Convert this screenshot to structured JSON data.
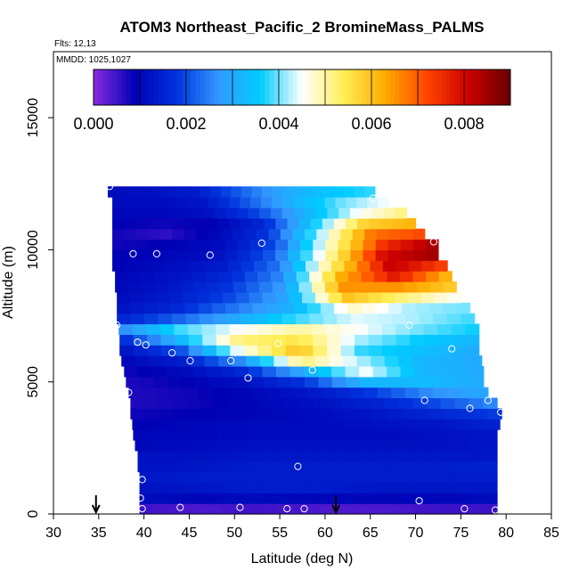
{
  "chart_data": {
    "type": "heatmap",
    "title": "ATOM3 Northeast_Pacific_2 BromineMass_PALMS",
    "flights_label": "Flts: 12,13",
    "date_label": "MMDD: 1025,1027",
    "xlabel": "Latitude (deg N)",
    "ylabel": "Altitude (m)",
    "xlim": [
      30,
      85
    ],
    "ylim": [
      0,
      17500
    ],
    "x_ticks": [
      "30",
      "35",
      "40",
      "45",
      "50",
      "55",
      "60",
      "65",
      "70",
      "75",
      "80",
      "85"
    ],
    "y_ticks": [
      "0",
      "5000",
      "10000",
      "15000"
    ],
    "colorbar": {
      "range": [
        0,
        0.009
      ],
      "tick_labels": [
        "0.000",
        "0.002",
        "0.004",
        "0.006",
        "0.008"
      ],
      "colors": [
        "#8a2be2",
        "#0000b4",
        "#0033dd",
        "#3399ff",
        "#00ccff",
        "#ffffff",
        "#ffee55",
        "#ffaa00",
        "#ff4400",
        "#cc0000",
        "#660000"
      ]
    },
    "layers": [
      {
        "alt": 200,
        "lat_start": 39.5,
        "lat_end": 79,
        "values": [
          0.0005,
          0.0004,
          0.0005,
          0.0004,
          0.0004,
          0.0005,
          0.0005
        ]
      },
      {
        "alt": 600,
        "lat_start": 39.5,
        "lat_end": 79,
        "values": [
          0.0011,
          0.001,
          0.0011,
          0.001,
          0.001,
          0.001,
          0.0011
        ]
      },
      {
        "alt": 1000,
        "lat_start": 39.5,
        "lat_end": 79,
        "values": [
          0.0012,
          0.0013,
          0.0014,
          0.0014,
          0.0013,
          0.0013,
          0.0013
        ]
      },
      {
        "alt": 1400,
        "lat_start": 39.5,
        "lat_end": 79,
        "values": [
          0.0013,
          0.0014,
          0.0014,
          0.0014,
          0.0014,
          0.0014,
          0.0014
        ]
      },
      {
        "alt": 1800,
        "lat_start": 39.3,
        "lat_end": 79,
        "values": [
          0.0012,
          0.0013,
          0.0014,
          0.0014,
          0.0014,
          0.0014,
          0.0015
        ]
      },
      {
        "alt": 2200,
        "lat_start": 39.3,
        "lat_end": 79,
        "values": [
          0.0012,
          0.0012,
          0.0013,
          0.0013,
          0.0013,
          0.0013,
          0.0013
        ]
      },
      {
        "alt": 2600,
        "lat_start": 39,
        "lat_end": 79,
        "values": [
          0.001,
          0.0011,
          0.0012,
          0.0012,
          0.0012,
          0.0012,
          0.0013
        ]
      },
      {
        "alt": 3000,
        "lat_start": 38.8,
        "lat_end": 79,
        "values": [
          0.001,
          0.001,
          0.0011,
          0.0011,
          0.0011,
          0.0012,
          0.0013
        ]
      },
      {
        "alt": 3400,
        "lat_start": 38.7,
        "lat_end": 79.3,
        "values": [
          0.0009,
          0.001,
          0.0011,
          0.0011,
          0.0012,
          0.0013,
          0.0015
        ]
      },
      {
        "alt": 3800,
        "lat_start": 38.5,
        "lat_end": 79.5,
        "values": [
          0.0008,
          0.0009,
          0.001,
          0.0011,
          0.0013,
          0.0016,
          0.0019
        ]
      },
      {
        "alt": 4200,
        "lat_start": 38.5,
        "lat_end": 79,
        "values": [
          0.0007,
          0.0008,
          0.001,
          0.0012,
          0.0015,
          0.002,
          0.0026
        ]
      },
      {
        "alt": 4600,
        "lat_start": 38.3,
        "lat_end": 78,
        "values": [
          0.0007,
          0.0008,
          0.001,
          0.0013,
          0.0018,
          0.0026,
          0.003
        ]
      },
      {
        "alt": 5000,
        "lat_start": 38,
        "lat_end": 77.5,
        "values": [
          0.0007,
          0.0009,
          0.0012,
          0.0018,
          0.0032,
          0.0033,
          0.003
        ]
      },
      {
        "alt": 5400,
        "lat_start": 37.8,
        "lat_end": 77.5,
        "values": [
          0.0008,
          0.0011,
          0.0016,
          0.003,
          0.0045,
          0.0032,
          0.003
        ]
      },
      {
        "alt": 5800,
        "lat_start": 37.5,
        "lat_end": 77.3,
        "values": [
          0.001,
          0.0014,
          0.0026,
          0.0052,
          0.0042,
          0.0032,
          0.003
        ]
      },
      {
        "alt": 6200,
        "lat_start": 37.3,
        "lat_end": 77,
        "values": [
          0.0012,
          0.002,
          0.0045,
          0.006,
          0.0038,
          0.0034,
          0.003
        ]
      },
      {
        "alt": 6600,
        "lat_start": 37.3,
        "lat_end": 77,
        "values": [
          0.0016,
          0.0032,
          0.0052,
          0.0055,
          0.0042,
          0.0036,
          0.0032
        ]
      },
      {
        "alt": 7000,
        "lat_start": 37.2,
        "lat_end": 77,
        "values": [
          0.0025,
          0.0038,
          0.0045,
          0.005,
          0.0045,
          0.004,
          0.0036
        ]
      },
      {
        "alt": 7400,
        "lat_start": 37,
        "lat_end": 76.5,
        "values": [
          0.0015,
          0.0022,
          0.003,
          0.0038,
          0.0044,
          0.0042,
          0.0038
        ]
      },
      {
        "alt": 7800,
        "lat_start": 37,
        "lat_end": 76,
        "values": [
          0.0012,
          0.0016,
          0.0024,
          0.0032,
          0.0048,
          0.0042,
          0.004
        ]
      },
      {
        "alt": 8200,
        "lat_start": 37,
        "lat_end": 75,
        "values": [
          0.0011,
          0.0014,
          0.002,
          0.003,
          0.006,
          0.0052,
          0.0045
        ]
      },
      {
        "alt": 8600,
        "lat_start": 36.8,
        "lat_end": 74.5,
        "values": [
          0.001,
          0.0013,
          0.0018,
          0.0028,
          0.0065,
          0.0065,
          0.0058
        ]
      },
      {
        "alt": 9000,
        "lat_start": 36.8,
        "lat_end": 74,
        "values": [
          0.001,
          0.0012,
          0.0016,
          0.0026,
          0.0062,
          0.0078,
          0.006
        ]
      },
      {
        "alt": 9400,
        "lat_start": 36.5,
        "lat_end": 73.5,
        "values": [
          0.0009,
          0.0011,
          0.0014,
          0.0024,
          0.0055,
          0.0082,
          0.0072
        ]
      },
      {
        "alt": 9800,
        "lat_start": 36.5,
        "lat_end": 72.5,
        "values": [
          0.0009,
          0.001,
          0.0012,
          0.0022,
          0.005,
          0.008,
          0.0085
        ]
      },
      {
        "alt": 10200,
        "lat_start": 36.5,
        "lat_end": 72.5,
        "values": [
          0.0008,
          0.0009,
          0.0011,
          0.002,
          0.0048,
          0.0075,
          0.0085
        ]
      },
      {
        "alt": 10600,
        "lat_start": 36.5,
        "lat_end": 71,
        "values": [
          0.0008,
          0.0006,
          0.001,
          0.0018,
          0.0042,
          0.0068,
          0.0072
        ]
      },
      {
        "alt": 11000,
        "lat_start": 36.5,
        "lat_end": 70,
        "values": [
          0.0009,
          0.0008,
          0.0009,
          0.0016,
          0.0036,
          0.0058,
          0.0062
        ]
      },
      {
        "alt": 11400,
        "lat_start": 36.5,
        "lat_end": 69,
        "values": [
          0.001,
          0.001,
          0.0012,
          0.002,
          0.0032,
          0.0045,
          0.0052
        ]
      },
      {
        "alt": 11800,
        "lat_start": 36.5,
        "lat_end": 67,
        "values": [
          0.0011,
          0.0011,
          0.0013,
          0.0022,
          0.0032,
          0.004,
          0.0045
        ]
      },
      {
        "alt": 12200,
        "lat_start": 36,
        "lat_end": 65.5,
        "values": [
          0.0011,
          0.0012,
          0.0014,
          0.0022,
          0.003,
          0.0035,
          0.0038
        ]
      }
    ],
    "samples": [
      {
        "lat": 36.2,
        "alt": 12400
      },
      {
        "lat": 65.3,
        "alt": 11950
      },
      {
        "lat": 38.8,
        "alt": 9850
      },
      {
        "lat": 41.4,
        "alt": 9850
      },
      {
        "lat": 47.3,
        "alt": 9800
      },
      {
        "lat": 53.0,
        "alt": 10250
      },
      {
        "lat": 72.0,
        "alt": 10300
      },
      {
        "lat": 37.0,
        "alt": 7150
      },
      {
        "lat": 60.3,
        "alt": 7050
      },
      {
        "lat": 69.3,
        "alt": 7150
      },
      {
        "lat": 77.3,
        "alt": 7400
      },
      {
        "lat": 39.3,
        "alt": 6500
      },
      {
        "lat": 40.2,
        "alt": 6400
      },
      {
        "lat": 54.8,
        "alt": 6450
      },
      {
        "lat": 43.1,
        "alt": 6100
      },
      {
        "lat": 74.0,
        "alt": 6250
      },
      {
        "lat": 45.1,
        "alt": 5800
      },
      {
        "lat": 49.6,
        "alt": 5800
      },
      {
        "lat": 58.6,
        "alt": 5450
      },
      {
        "lat": 51.5,
        "alt": 5150
      },
      {
        "lat": 38.3,
        "alt": 4600
      },
      {
        "lat": 71.0,
        "alt": 4300
      },
      {
        "lat": 78.0,
        "alt": 4300
      },
      {
        "lat": 76.0,
        "alt": 4000
      },
      {
        "lat": 79.4,
        "alt": 3850
      },
      {
        "lat": 57.0,
        "alt": 1800
      },
      {
        "lat": 39.8,
        "alt": 1300
      },
      {
        "lat": 39.6,
        "alt": 600
      },
      {
        "lat": 70.4,
        "alt": 500
      },
      {
        "lat": 39.8,
        "alt": 200
      },
      {
        "lat": 44.0,
        "alt": 250
      },
      {
        "lat": 50.6,
        "alt": 250
      },
      {
        "lat": 55.8,
        "alt": 200
      },
      {
        "lat": 57.7,
        "alt": 200
      },
      {
        "lat": 75.4,
        "alt": 200
      },
      {
        "lat": 78.8,
        "alt": 150
      }
    ],
    "arrows_at_lat": [
      34.7,
      61.2
    ]
  }
}
